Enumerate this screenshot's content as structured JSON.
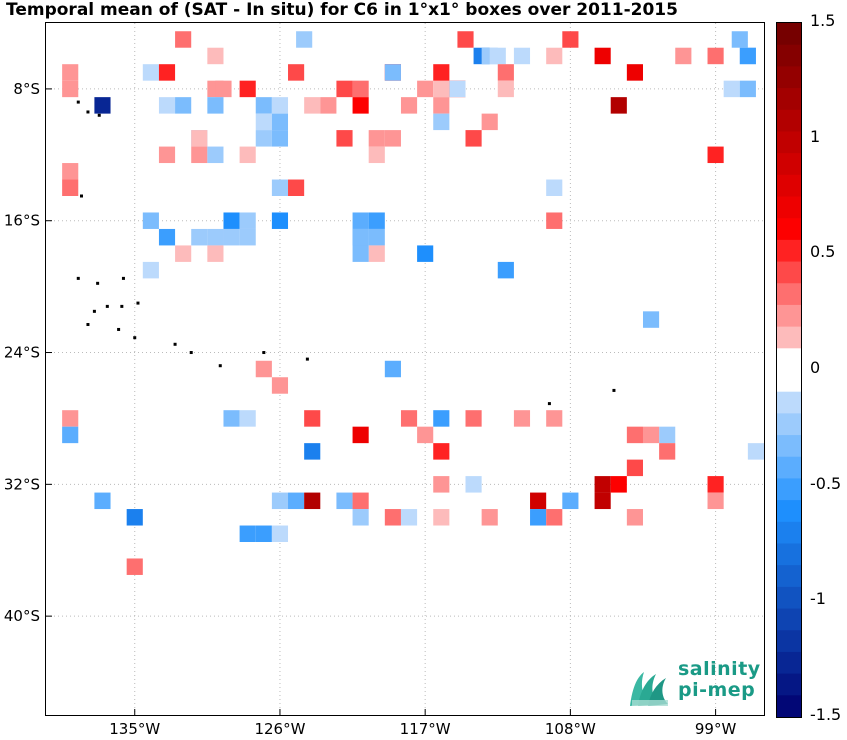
{
  "title": "Temporal mean of (SAT - In situ) for C6 in 1°x1° boxes over 2011-2015",
  "map": {
    "lon_range": [
      -140.5,
      -96
    ],
    "lat_range": [
      -46,
      -4
    ],
    "lon_ticks": [
      {
        "value": -135,
        "label": "135°W"
      },
      {
        "value": -126,
        "label": "126°W"
      },
      {
        "value": -117,
        "label": "117°W"
      },
      {
        "value": -108,
        "label": "108°W"
      },
      {
        "value": -99,
        "label": "99°W"
      }
    ],
    "lat_ticks": [
      {
        "value": -8,
        "label": "8°S"
      },
      {
        "value": -16,
        "label": "16°S"
      },
      {
        "value": -24,
        "label": "24°S"
      },
      {
        "value": -32,
        "label": "32°S"
      },
      {
        "value": -40,
        "label": "40°S"
      }
    ],
    "grid": true,
    "cells": [
      [
        -132,
        -5,
        0.35
      ],
      [
        -130,
        -6,
        0.15
      ],
      [
        -124.5,
        -5,
        -0.2
      ],
      [
        -119,
        -7,
        0.6
      ],
      [
        -114.5,
        -5,
        0.45
      ],
      [
        -113.5,
        -6,
        -0.7
      ],
      [
        -113,
        -6,
        -0.25
      ],
      [
        -112.5,
        -6,
        -0.15
      ],
      [
        -112,
        -7,
        0.3
      ],
      [
        -111,
        -6,
        -0.15
      ],
      [
        -109,
        -6,
        0.15
      ],
      [
        -108,
        -5,
        0.4
      ],
      [
        -106,
        -6,
        0.7
      ],
      [
        -101,
        -6,
        0.2
      ],
      [
        -99,
        -6,
        0.3
      ],
      [
        -97.5,
        -5,
        -0.3
      ],
      [
        -97,
        -6,
        -0.15
      ],
      [
        -97,
        -6,
        -0.5
      ],
      [
        -139,
        -7,
        0.2
      ],
      [
        -134,
        -7,
        -0.15
      ],
      [
        -133,
        -7,
        0.5
      ],
      [
        -130,
        -8,
        0.2
      ],
      [
        -129.5,
        -8,
        0.2
      ],
      [
        -128,
        -8,
        0.5
      ],
      [
        -125,
        -7,
        0.45
      ],
      [
        -122,
        -8,
        0.45
      ],
      [
        -121,
        -8,
        0.3
      ],
      [
        -119,
        -7,
        -0.35
      ],
      [
        -117,
        -8,
        0.25
      ],
      [
        -116,
        -8,
        0.15
      ],
      [
        -116,
        -7,
        0.5
      ],
      [
        -115,
        -8,
        0.6
      ],
      [
        -115,
        -8,
        -0.15
      ],
      [
        -112,
        -8,
        0.15
      ],
      [
        -104,
        -7,
        0.7
      ],
      [
        -98,
        -8,
        -0.15
      ],
      [
        -97,
        -8,
        -0.3
      ],
      [
        -139,
        -8,
        0.2
      ],
      [
        -137,
        -9,
        -1.3
      ],
      [
        -133,
        -9,
        -0.15
      ],
      [
        -132,
        -9,
        -0.3
      ],
      [
        -130,
        -9,
        -0.35
      ],
      [
        -127,
        -9,
        -0.3
      ],
      [
        -126,
        -9,
        -0.15
      ],
      [
        -124,
        -9,
        0.15
      ],
      [
        -123,
        -9,
        0.2
      ],
      [
        -121,
        -9,
        0.6
      ],
      [
        -118,
        -9,
        0.25
      ],
      [
        -116,
        -9,
        0.25
      ],
      [
        -105,
        -9,
        1.1
      ],
      [
        -131,
        -11,
        -0.25
      ],
      [
        -131,
        -11,
        0.15
      ],
      [
        -127,
        -10,
        -0.15
      ],
      [
        -127,
        -11,
        -0.2
      ],
      [
        -126,
        -11,
        -0.3
      ],
      [
        -126,
        -10,
        -0.3
      ],
      [
        -122,
        -11,
        0.4
      ],
      [
        -120,
        -11,
        0.25
      ],
      [
        -119,
        -11,
        0.25
      ],
      [
        -116,
        -10,
        -0.25
      ],
      [
        -114,
        -11,
        0.4
      ],
      [
        -113,
        -10,
        0.2
      ],
      [
        -120,
        -12,
        0.15
      ],
      [
        -99,
        -12,
        0.5
      ],
      [
        -139,
        -13,
        0.2
      ],
      [
        -131,
        -12,
        0.25
      ],
      [
        -130,
        -12,
        -0.25
      ],
      [
        -128,
        -12,
        0.15
      ],
      [
        -133,
        -12,
        0.2
      ],
      [
        -126,
        -14,
        -0.2
      ],
      [
        -125,
        -14,
        0.4
      ],
      [
        -109,
        -14,
        -0.15
      ],
      [
        -139,
        -14,
        0.3
      ],
      [
        -134,
        -16,
        -0.35
      ],
      [
        -129,
        -16,
        -0.65
      ],
      [
        -128,
        -16,
        -0.2
      ],
      [
        -126,
        -16,
        -0.6
      ],
      [
        -121,
        -16,
        -0.4
      ],
      [
        -121,
        -17,
        -0.4
      ],
      [
        -120,
        -16,
        -0.55
      ],
      [
        -109,
        -16,
        0.3
      ],
      [
        -133,
        -17,
        -0.55
      ],
      [
        -131,
        -17,
        -0.2
      ],
      [
        -130,
        -17,
        -0.25
      ],
      [
        -129,
        -17,
        -0.25
      ],
      [
        -128,
        -17,
        -0.25
      ],
      [
        -121,
        -17,
        -0.35
      ],
      [
        -120,
        -17,
        -0.3
      ],
      [
        -132,
        -18,
        0.15
      ],
      [
        -130,
        -18,
        0.15
      ],
      [
        -120,
        -18,
        0.15
      ],
      [
        -121,
        -18,
        -0.3
      ],
      [
        -117,
        -18,
        -0.65
      ],
      [
        -112,
        -19,
        -0.5
      ],
      [
        -134,
        -19,
        -0.15
      ],
      [
        -103,
        -22,
        -0.35
      ],
      [
        -127,
        -25,
        0.2
      ],
      [
        -119,
        -25,
        -0.45
      ],
      [
        -126,
        -26,
        0.2
      ],
      [
        -139,
        -28,
        0.25
      ],
      [
        -129,
        -28,
        -0.35
      ],
      [
        -128,
        -28,
        -0.15
      ],
      [
        -124,
        -28,
        0.45
      ],
      [
        -118,
        -28,
        0.3
      ],
      [
        -116,
        -28,
        -0.5
      ],
      [
        -114,
        -28,
        0.3
      ],
      [
        -111,
        -28,
        0.25
      ],
      [
        -109,
        -28,
        0.25
      ],
      [
        -139,
        -29,
        -0.4
      ],
      [
        -121,
        -29,
        0.7
      ],
      [
        -117,
        -29,
        0.25
      ],
      [
        -104,
        -29,
        0.3
      ],
      [
        -102,
        -29,
        -0.25
      ],
      [
        -103,
        -29,
        0.25
      ],
      [
        -124,
        -30,
        -0.7
      ],
      [
        -116,
        -30,
        0.5
      ],
      [
        -102,
        -30,
        0.3
      ],
      [
        -96.5,
        -30,
        -0.15
      ],
      [
        -116,
        -32,
        0.2
      ],
      [
        -114,
        -32,
        -0.15
      ],
      [
        -106,
        -32,
        1.0
      ],
      [
        -105,
        -32,
        0.6
      ],
      [
        -104,
        -31,
        0.4
      ],
      [
        -99,
        -32,
        0.55
      ],
      [
        -137,
        -33,
        -0.45
      ],
      [
        -126,
        -33,
        -0.25
      ],
      [
        -125,
        -33,
        -0.4
      ],
      [
        -124,
        -33,
        1.1
      ],
      [
        -122,
        -33,
        -0.3
      ],
      [
        -121,
        -33,
        0.35
      ],
      [
        -110,
        -33,
        0.9
      ],
      [
        -108,
        -33,
        -0.45
      ],
      [
        -106,
        -33,
        1.0
      ],
      [
        -99,
        -33,
        0.2
      ],
      [
        -135,
        -34,
        -0.75
      ],
      [
        -121,
        -34,
        -0.2
      ],
      [
        -119,
        -34,
        0.3
      ],
      [
        -118,
        -34,
        -0.15
      ],
      [
        -116,
        -34,
        0.15
      ],
      [
        -113,
        -34,
        0.25
      ],
      [
        -110,
        -34,
        -0.5
      ],
      [
        -109,
        -34,
        0.3
      ],
      [
        -104,
        -34,
        0.2
      ],
      [
        -128,
        -35,
        -0.55
      ],
      [
        -127,
        -35,
        -0.55
      ],
      [
        -126,
        -35,
        -0.15
      ],
      [
        -135,
        -37,
        0.3
      ]
    ],
    "islands": [
      [
        -138.5,
        -8.8
      ],
      [
        -137.9,
        -9.4
      ],
      [
        -137.2,
        -9.6
      ],
      [
        -138.3,
        -14.5
      ],
      [
        -138.5,
        -19.5
      ],
      [
        -137.3,
        -19.8
      ],
      [
        -135.7,
        -19.5
      ],
      [
        -134.8,
        -21.0
      ],
      [
        -135.8,
        -21.2
      ],
      [
        -137.5,
        -21.5
      ],
      [
        -136.7,
        -21.2
      ],
      [
        -137.9,
        -22.3
      ],
      [
        -136,
        -22.6
      ],
      [
        -135,
        -23.1
      ],
      [
        -132.5,
        -23.5
      ],
      [
        -131.5,
        -24.0
      ],
      [
        -129.7,
        -24.8
      ],
      [
        -127,
        -24.0
      ],
      [
        -124.3,
        -24.4
      ],
      [
        -109.3,
        -27.1
      ],
      [
        -105.3,
        -26.3
      ]
    ]
  },
  "colorbar": {
    "min": -1.5,
    "max": 1.5,
    "levels": 32,
    "ticks": [
      {
        "value": 1.5,
        "label": "1.5"
      },
      {
        "value": 1,
        "label": "1"
      },
      {
        "value": 0.5,
        "label": "0.5"
      },
      {
        "value": 0,
        "label": "0"
      },
      {
        "value": -0.5,
        "label": "-0.5"
      },
      {
        "value": -1,
        "label": "-1"
      },
      {
        "value": -1.5,
        "label": "-1.5"
      }
    ],
    "colors": {
      "neg_end": "#00006e",
      "neg_mid": "#1e90ff",
      "neg_light": "#dbe9fb",
      "zero": "#ffffff",
      "pos_light": "#fde0e0",
      "pos_mid": "#ff0000",
      "pos_end": "#6e0000"
    }
  },
  "logo": {
    "line1": "salinity",
    "line2": "pi-mep"
  }
}
